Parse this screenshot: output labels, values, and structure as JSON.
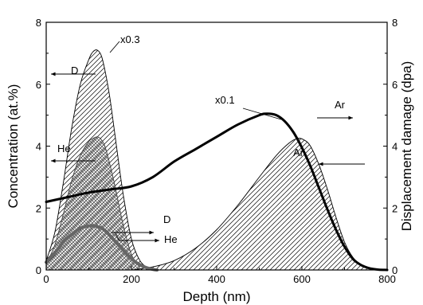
{
  "chart_data": {
    "type": "area",
    "xlabel": "Depth (nm)",
    "ylabel_left": "Concentration (at.%)",
    "ylabel_right": "Displacement damage (dpa)",
    "xlim": [
      0,
      800
    ],
    "ylim_left": [
      0,
      8
    ],
    "ylim_right": [
      0,
      8
    ],
    "x_ticks": [
      0,
      200,
      400,
      600,
      800
    ],
    "y_ticks_left": [
      0,
      2,
      4,
      6,
      8
    ],
    "y_ticks_right": [
      0,
      2,
      4,
      6,
      8
    ],
    "grid": false,
    "series": [
      {
        "name": "D",
        "axis": "left",
        "style": "hatched-fill",
        "x": [
          0,
          20,
          40,
          60,
          80,
          100,
          110,
          120,
          130,
          140,
          150,
          160,
          180,
          200,
          220,
          240
        ],
        "y": [
          0.3,
          1.2,
          2.8,
          4.6,
          6.0,
          6.8,
          7.05,
          7.1,
          6.9,
          6.3,
          5.5,
          4.5,
          2.5,
          1.0,
          0.3,
          0.05
        ]
      },
      {
        "name": "He",
        "axis": "left",
        "style": "crosshatched-fill",
        "x": [
          0,
          20,
          40,
          60,
          80,
          100,
          110,
          120,
          130,
          140,
          160,
          180,
          200,
          220
        ],
        "y": [
          0.2,
          0.8,
          1.8,
          2.9,
          3.7,
          4.15,
          4.25,
          4.3,
          4.2,
          3.9,
          2.8,
          1.5,
          0.5,
          0.1
        ]
      },
      {
        "name": "Ar",
        "axis": "left",
        "style": "hatched-fill",
        "x": [
          200,
          250,
          300,
          350,
          400,
          450,
          500,
          540,
          570,
          590,
          605,
          620,
          640,
          660,
          680,
          700,
          720,
          740,
          760,
          780
        ],
        "y": [
          0.0,
          0.1,
          0.3,
          0.7,
          1.3,
          2.1,
          3.0,
          3.7,
          4.1,
          4.25,
          4.2,
          4.0,
          3.4,
          2.6,
          1.7,
          0.9,
          0.4,
          0.15,
          0.05,
          0.0
        ]
      },
      {
        "name": "Ar",
        "axis": "right",
        "style": "thick-line",
        "x": [
          0,
          50,
          100,
          150,
          200,
          250,
          300,
          350,
          400,
          450,
          500,
          520,
          540,
          560,
          580,
          600,
          620,
          640,
          660,
          680,
          700,
          720,
          740,
          760,
          780,
          800
        ],
        "y": [
          2.2,
          2.35,
          2.5,
          2.6,
          2.7,
          3.0,
          3.5,
          3.9,
          4.3,
          4.7,
          5.0,
          5.05,
          5.0,
          4.8,
          4.45,
          3.95,
          3.35,
          2.65,
          1.95,
          1.3,
          0.75,
          0.35,
          0.15,
          0.05,
          0.01,
          0.0
        ]
      },
      {
        "name": "He",
        "axis": "right",
        "style": "thick-gray-line",
        "x": [
          0,
          20,
          40,
          60,
          80,
          100,
          110,
          120,
          130,
          140,
          150,
          170,
          190,
          210,
          230,
          250,
          260
        ],
        "y": [
          0.25,
          0.55,
          0.9,
          1.15,
          1.35,
          1.42,
          1.43,
          1.4,
          1.35,
          1.25,
          1.1,
          0.8,
          0.5,
          0.25,
          0.1,
          0.02,
          0.0
        ]
      }
    ],
    "annotations": [
      {
        "text": "x0.3"
      },
      {
        "text": "D"
      },
      {
        "text": "He"
      },
      {
        "text": "x0.1"
      },
      {
        "text": "Ar"
      },
      {
        "text": "Ar"
      },
      {
        "text": "D"
      },
      {
        "text": "He"
      }
    ]
  }
}
